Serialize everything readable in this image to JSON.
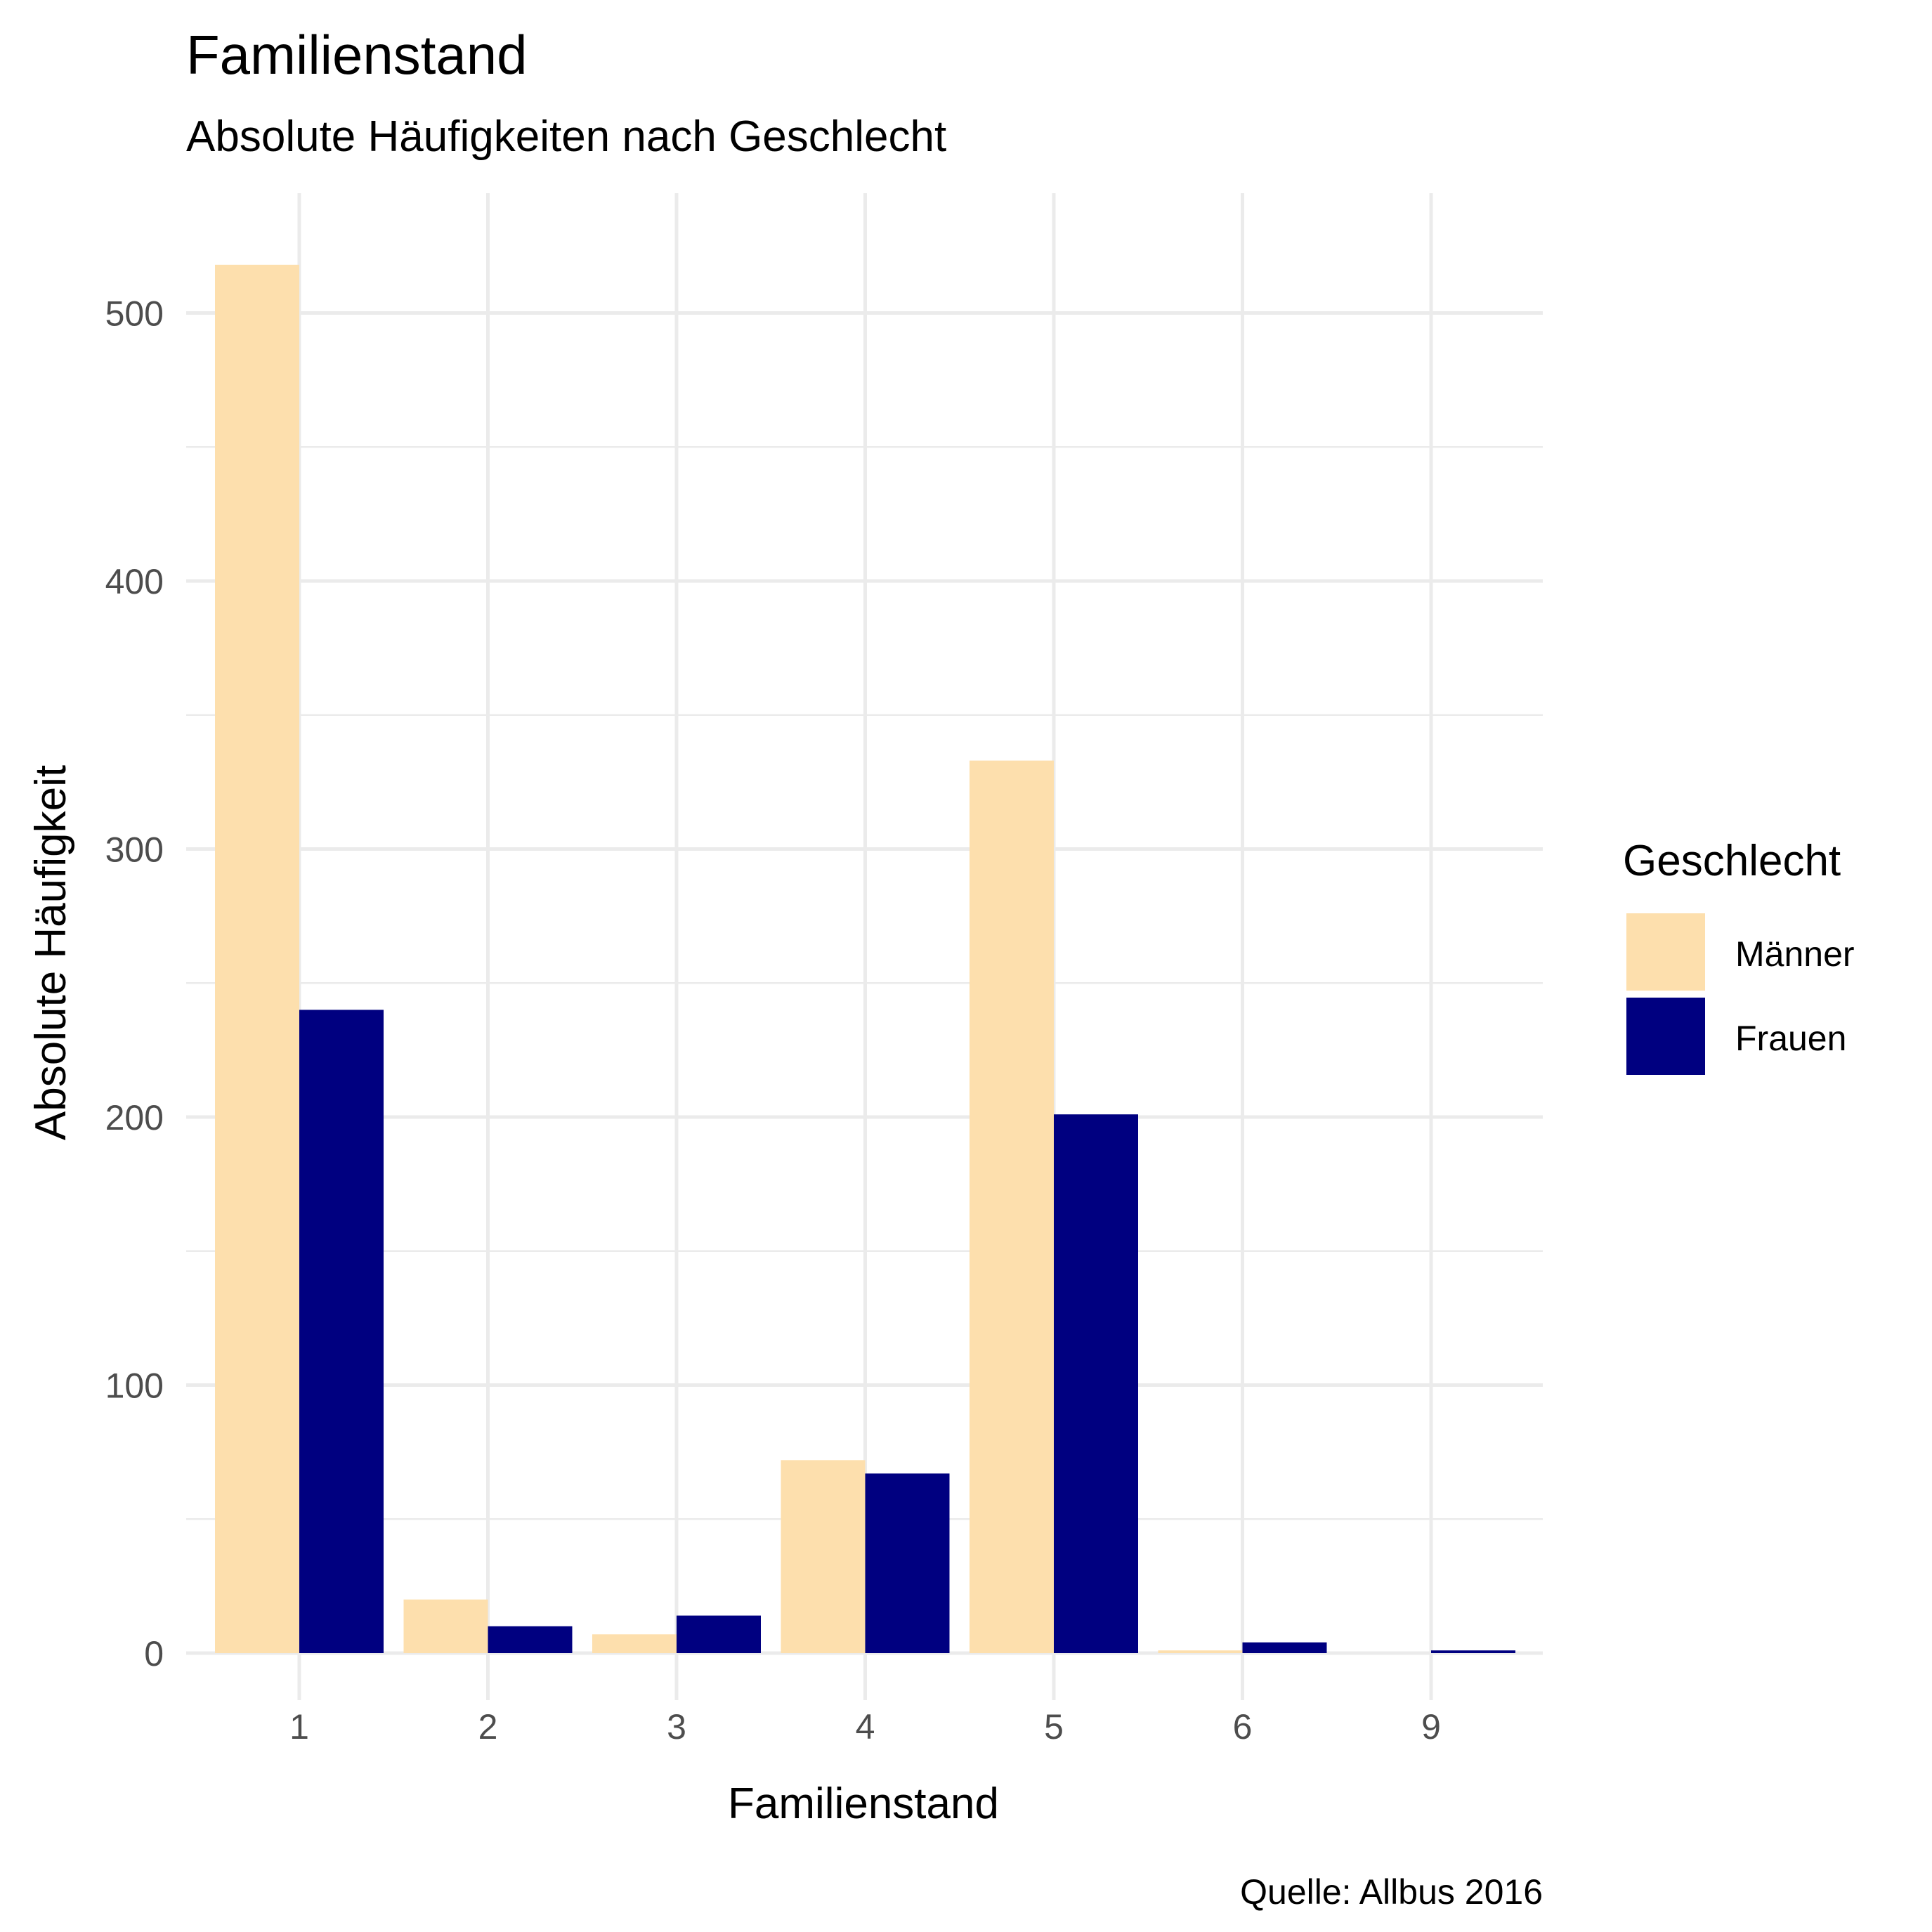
{
  "chart_data": {
    "type": "bar",
    "title": "Familienstand",
    "subtitle": "Absolute Häufigkeiten nach Geschlecht",
    "xlabel": "Familienstand",
    "ylabel": "Absolute Häufigkeit",
    "caption": "Quelle: Allbus 2016",
    "categories": [
      "1",
      "2",
      "3",
      "4",
      "5",
      "6",
      "9"
    ],
    "series": [
      {
        "name": "Männer",
        "color": "#fddfad",
        "values": [
          518,
          20,
          7,
          72,
          333,
          1,
          0
        ]
      },
      {
        "name": "Frauen",
        "color": "#000080",
        "values": [
          240,
          10,
          14,
          67,
          201,
          4,
          1
        ]
      }
    ],
    "ylim": [
      0,
      540
    ],
    "yticks": [
      0,
      100,
      200,
      300,
      400,
      500
    ],
    "grid": true,
    "legend": {
      "title": "Geschlecht",
      "position": "right"
    }
  }
}
